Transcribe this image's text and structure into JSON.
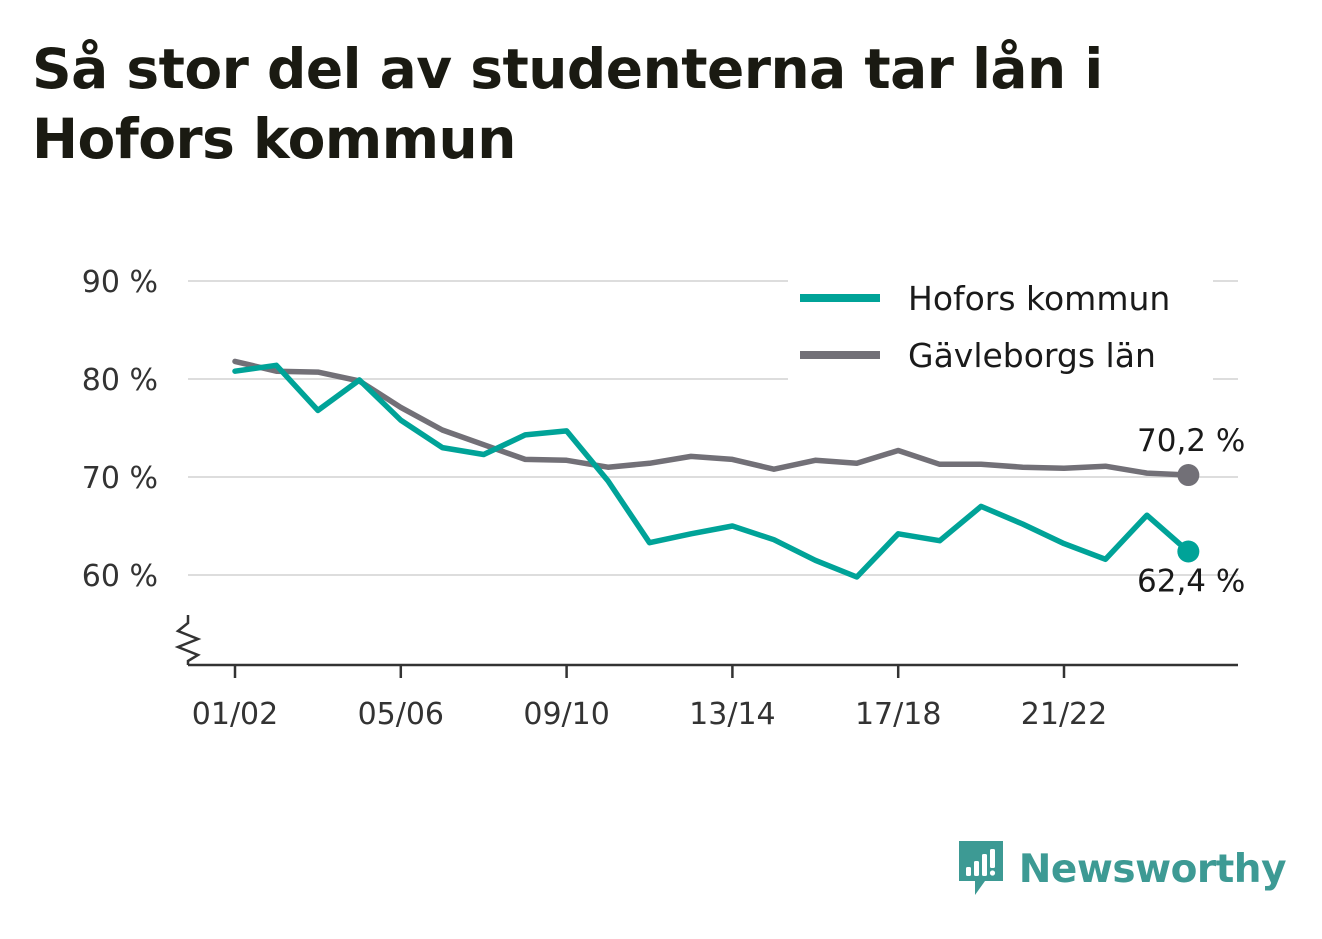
{
  "chart_data": {
    "type": "line",
    "title": "Så stor del av studenterna tar lån i Hofors kommun",
    "x": [
      "01/02",
      "02/03",
      "03/04",
      "04/05",
      "05/06",
      "06/07",
      "07/08",
      "08/09",
      "09/10",
      "10/11",
      "11/12",
      "12/13",
      "13/14",
      "14/15",
      "15/16",
      "16/17",
      "17/18",
      "18/19",
      "19/20",
      "20/21",
      "21/22",
      "22/23",
      "23/24",
      "24/25"
    ],
    "x_tick_labels": [
      "01/02",
      "05/06",
      "09/10",
      "13/14",
      "17/18",
      "21/22"
    ],
    "y_tick_labels": [
      "90 %",
      "80 %",
      "70 %",
      "60 %"
    ],
    "y_ticks": [
      90,
      80,
      70,
      60
    ],
    "ylim": [
      51,
      90
    ],
    "y_axis_break": true,
    "grid": true,
    "legend_position": "top-right",
    "series": [
      {
        "name": "Hofors kommun",
        "color": "#00a398",
        "values": [
          80.8,
          81.4,
          76.8,
          79.9,
          75.8,
          73.0,
          72.3,
          74.3,
          74.7,
          69.6,
          63.3,
          64.2,
          65.0,
          63.6,
          61.5,
          59.8,
          64.2,
          63.5,
          67.0,
          65.2,
          63.2,
          61.6,
          66.1,
          62.4
        ],
        "end_label": "62,4 %"
      },
      {
        "name": "Gävleborgs län",
        "color": "#727077",
        "values": [
          81.8,
          80.8,
          80.7,
          79.8,
          77.1,
          74.8,
          73.3,
          71.8,
          71.7,
          71.0,
          71.4,
          72.1,
          71.8,
          70.8,
          71.7,
          71.4,
          72.7,
          71.3,
          71.3,
          71.0,
          70.9,
          71.1,
          70.4,
          70.2
        ],
        "end_label": "70,2 %"
      }
    ]
  },
  "brand": {
    "name": "Newsworthy",
    "icon": "newsworthy-logo-icon",
    "color": "#3d9a94"
  }
}
